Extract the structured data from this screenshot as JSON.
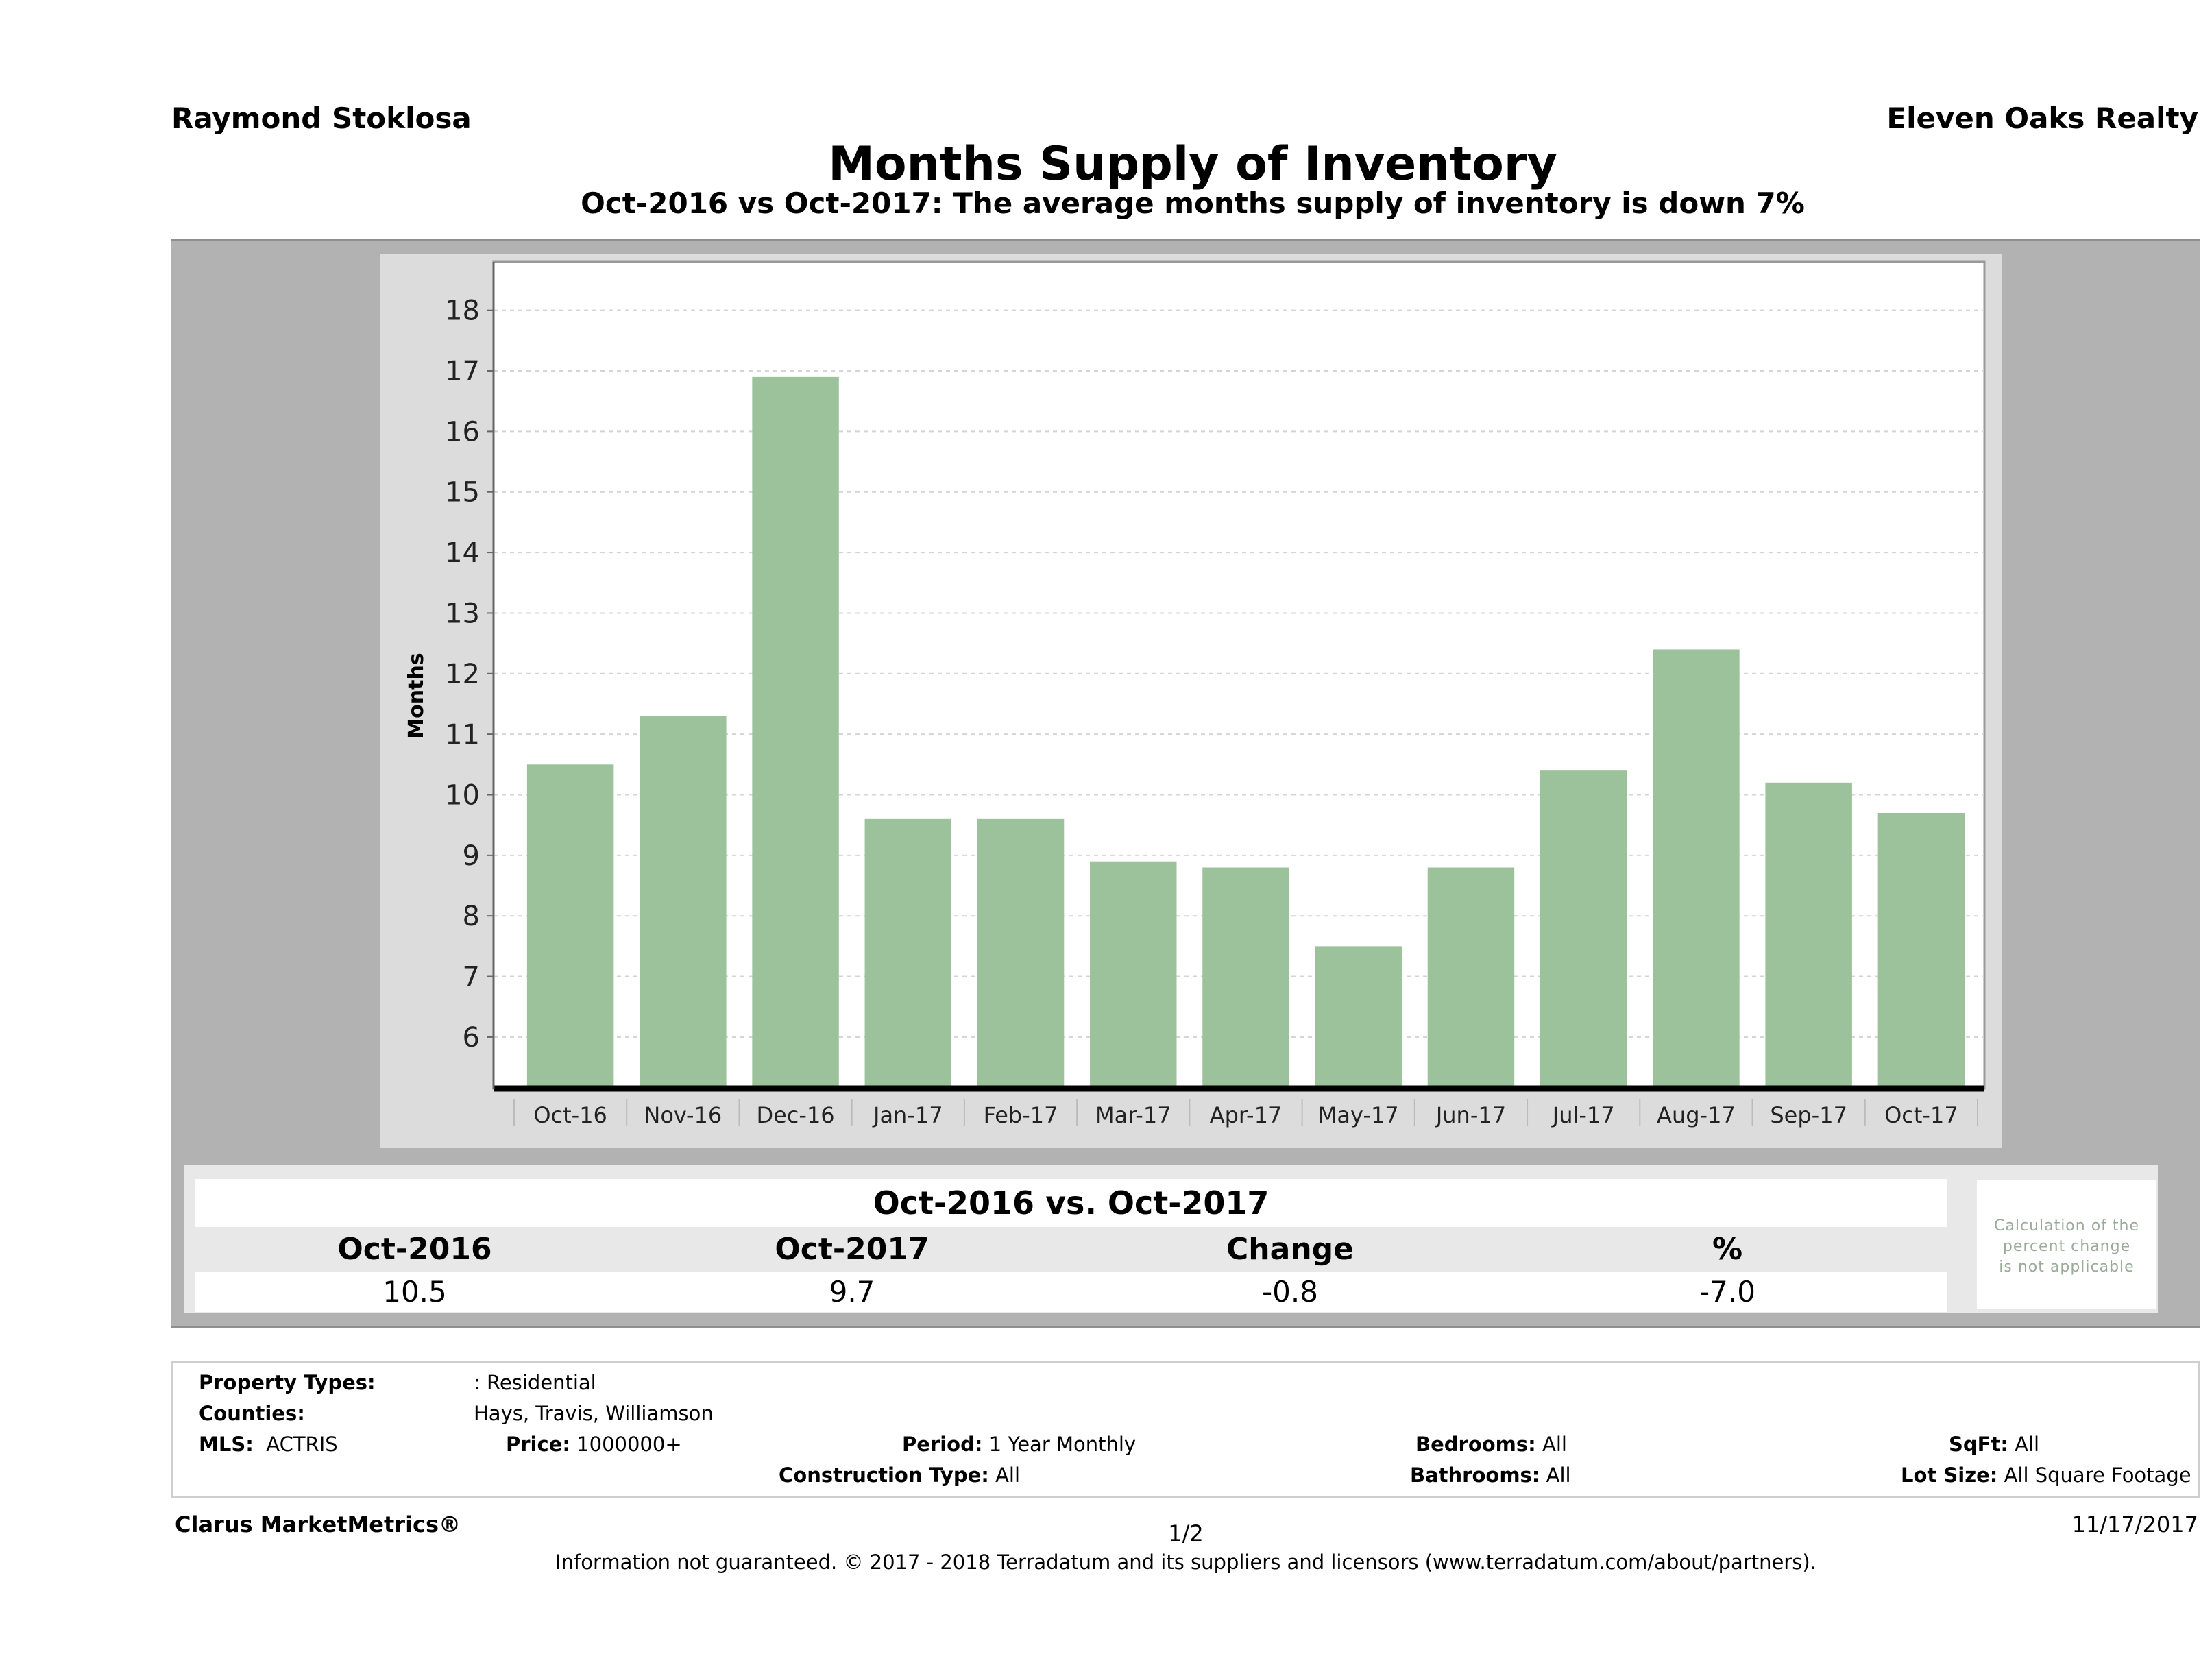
{
  "header": {
    "agent_name": "Raymond Stoklosa",
    "brokerage": "Eleven Oaks Realty",
    "title": "Months Supply of Inventory",
    "subtitle": "Oct-2016 vs Oct-2017: The average months supply of inventory is down 7%"
  },
  "chart_data": {
    "type": "bar",
    "title": "Months Supply of Inventory",
    "xlabel": "",
    "ylabel": "Months",
    "categories": [
      "Oct-16",
      "Nov-16",
      "Dec-16",
      "Jan-17",
      "Feb-17",
      "Mar-17",
      "Apr-17",
      "May-17",
      "Jun-17",
      "Jul-17",
      "Aug-17",
      "Sep-17",
      "Oct-17"
    ],
    "values": [
      10.5,
      11.3,
      16.9,
      9.6,
      9.6,
      8.9,
      8.8,
      7.5,
      8.8,
      10.4,
      12.4,
      10.2,
      9.7
    ],
    "yticks": [
      6,
      7,
      8,
      9,
      10,
      11,
      12,
      13,
      14,
      15,
      16,
      17,
      18
    ],
    "ylim": [
      5.15,
      18.8
    ],
    "grid": true,
    "bar_color": "#9bc29a"
  },
  "summary": {
    "title": "Oct-2016 vs. Oct-2017",
    "columns": [
      "Oct-2016",
      "Oct-2017",
      "Change",
      "%"
    ],
    "values": [
      "10.5",
      "9.7",
      "-0.8",
      "-7.0"
    ],
    "note": [
      "Calculation of the",
      "percent change",
      "is not applicable"
    ]
  },
  "criteria": {
    "property_types_label": "Property Types:",
    "property_types_value": ": Residential",
    "counties_label": "Counties:",
    "counties_value": "Hays, Travis, Williamson",
    "mls_label": "MLS:",
    "mls_value": "ACTRIS",
    "price_label": "Price:",
    "price_value": "1000000+",
    "period_label": "Period:",
    "period_value": "1 Year Monthly",
    "construction_label": "Construction Type:",
    "construction_value": "All",
    "bedrooms_label": "Bedrooms:",
    "bedrooms_value": "All",
    "bathrooms_label": "Bathrooms:",
    "bathrooms_value": "All",
    "sqft_label": "SqFt:",
    "sqft_value": "All",
    "lot_size_label": "Lot Size:",
    "lot_size_value": "All Square Footage"
  },
  "footer": {
    "brand": "Clarus MarketMetrics®",
    "page": "1/2",
    "date": "11/17/2017",
    "disclaimer": "Information not guaranteed. © 2017 - 2018 Terradatum and its suppliers and licensors (www.terradatum.com/about/partners)."
  }
}
